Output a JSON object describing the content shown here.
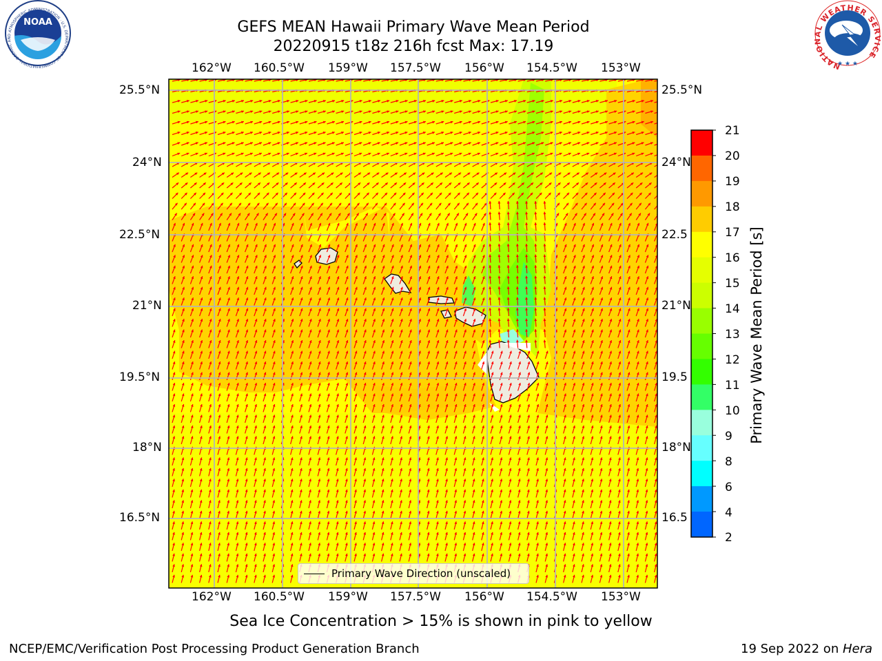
{
  "title": {
    "line1": "GEFS MEAN Hawaii Primary Wave Mean Period",
    "line2": "20220915 t18z 216h fcst   Max: 17.19"
  },
  "axes": {
    "lon_labels": [
      "162°W",
      "160.5°W",
      "159°W",
      "157.5°W",
      "156°W",
      "154.5°W",
      "153°W"
    ],
    "lat_labels_left": [
      "25.5°N",
      "24°N",
      "22.5°N",
      "21°N",
      "19.5°N",
      "18°N",
      "16.5°N"
    ],
    "lat_labels_right": [
      "25.5°N",
      "24°N",
      "22.5",
      "21°N",
      "19.5",
      "18°N",
      "16.5"
    ]
  },
  "colorbar": {
    "label": "Primary Wave Mean Period [s]",
    "ticks": [
      "21",
      "20",
      "19",
      "18",
      "17",
      "16",
      "15",
      "14",
      "13",
      "12",
      "11",
      "10",
      "9",
      "8",
      "6",
      "4",
      "2"
    ],
    "colors": [
      "#ff0000",
      "#ff3300",
      "#ff6600",
      "#ff9900",
      "#ffcc00",
      "#ffff00",
      "#e5ff00",
      "#ccff00",
      "#99ff00",
      "#66ff00",
      "#33ff00",
      "#33ff66",
      "#99ffdd",
      "#66ffff",
      "#00ffff",
      "#0099ff",
      "#0066ff",
      "#0000ff"
    ]
  },
  "legend": {
    "label": "Primary Wave Direction (unscaled)"
  },
  "notes": {
    "sea_ice": "Sea Ice Concentration > 15% is shown in pink to yellow"
  },
  "footer": {
    "left": "NCEP/EMC/Verification Post Processing Product Generation Branch",
    "right_prefix": "19 Sep 2022 on ",
    "right_machine": "Hera"
  },
  "logos": {
    "left": "NOAA",
    "left_ring": "NATIONAL OCEANIC AND ATMOSPHERIC ADMINISTRATION · U.S. DEPARTMENT OF COMMERCE ·",
    "right_ring": "NATIONAL WEATHER SERVICE"
  },
  "palette": {
    "period_16": "#ffff00",
    "period_17": "#ffcc00",
    "period_15": "#e5ff00",
    "arrow": "#ff0000",
    "land": "#eeece0"
  }
}
